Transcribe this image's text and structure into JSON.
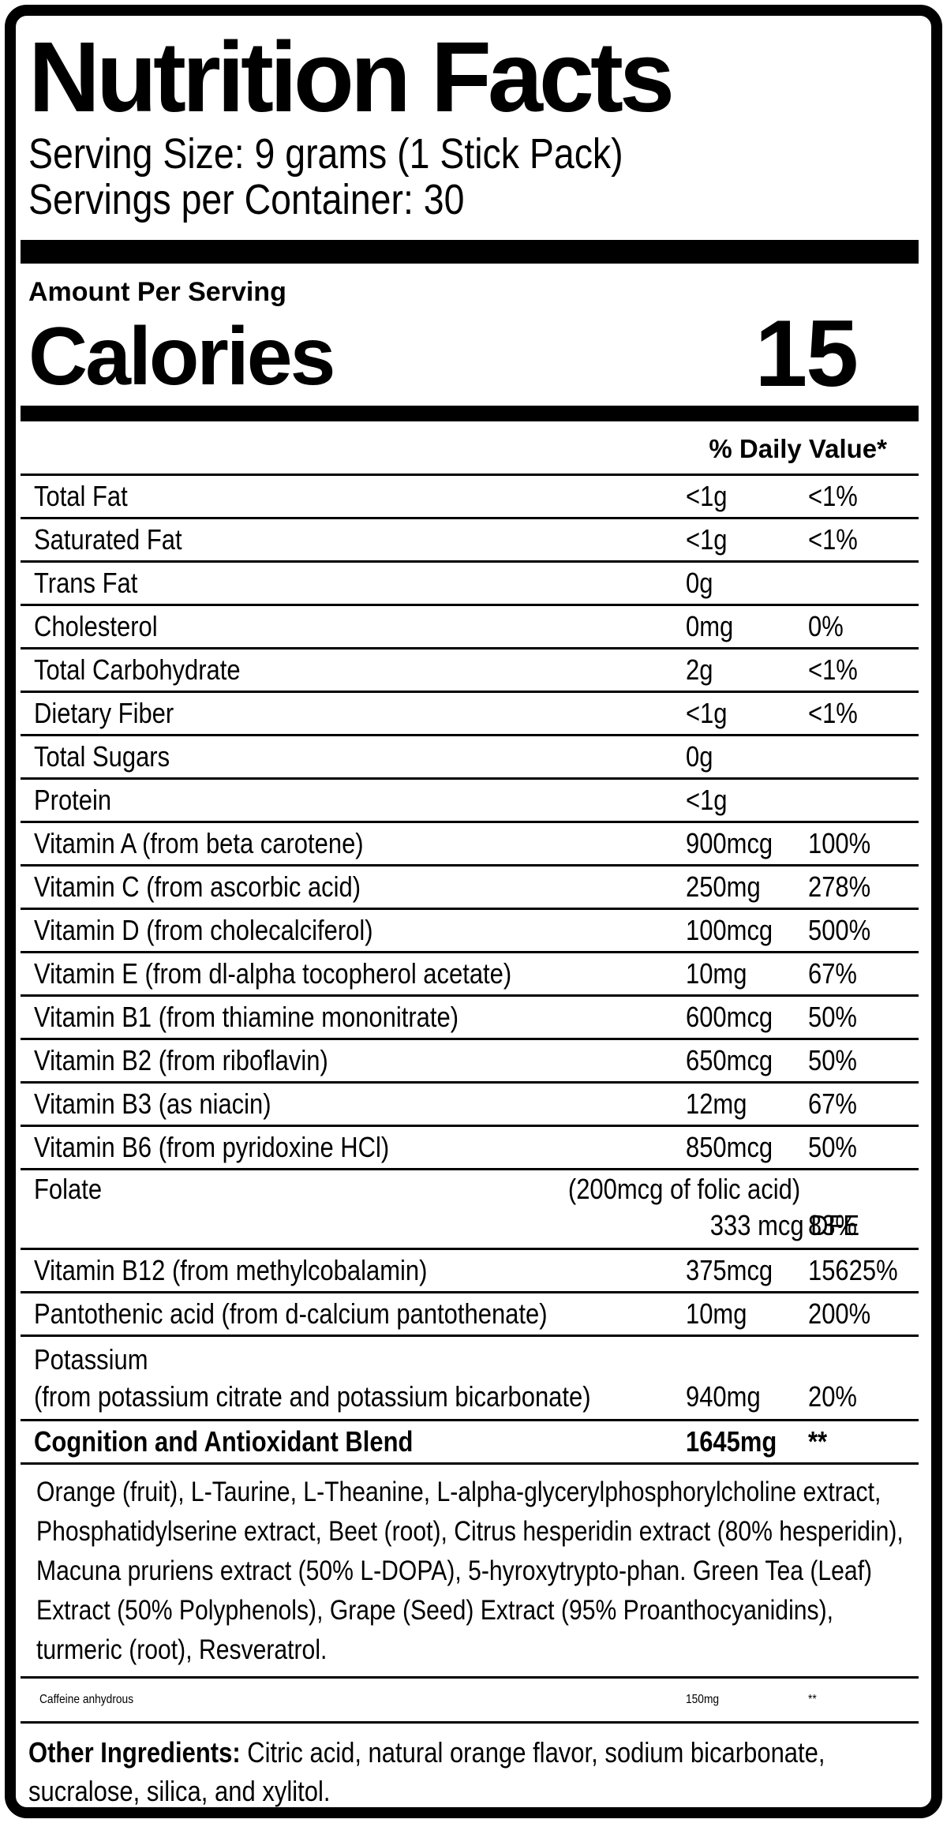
{
  "colors": {
    "ink": "#000000",
    "paper": "#ffffff"
  },
  "header": {
    "title": "Nutrition Facts",
    "serving_size": "Serving Size: 9 grams (1 Stick Pack)",
    "servings_per_container": "Servings per Container: 30"
  },
  "calories": {
    "section_label": "Amount Per Serving",
    "label": "Calories",
    "value": "15"
  },
  "daily_value_header": "% Daily Value*",
  "nutrients": [
    {
      "type": "simple",
      "label": "Total Fat",
      "amount": "<1g",
      "dv": "<1%"
    },
    {
      "type": "simple",
      "label": "Saturated Fat",
      "amount": "<1g",
      "dv": "<1%"
    },
    {
      "type": "simple",
      "label": "Trans Fat",
      "amount": "0g",
      "dv": ""
    },
    {
      "type": "simple",
      "label": "Cholesterol",
      "amount": "0mg",
      "dv": "0%"
    },
    {
      "type": "simple",
      "label": "Total Carbohydrate",
      "amount": "2g",
      "dv": "<1%"
    },
    {
      "type": "simple",
      "label": "Dietary Fiber",
      "amount": "<1g",
      "dv": "<1%"
    },
    {
      "type": "simple",
      "label": "Total Sugars",
      "amount": "0g",
      "dv": ""
    },
    {
      "type": "simple",
      "label": "Protein",
      "amount": "<1g",
      "dv": ""
    },
    {
      "type": "simple",
      "label": "Vitamin A (from beta carotene)",
      "amount": "900mcg",
      "dv": "100%"
    },
    {
      "type": "simple",
      "label": "Vitamin C (from ascorbic acid)",
      "amount": "250mg",
      "dv": "278%"
    },
    {
      "type": "simple",
      "label": "Vitamin D (from cholecalciferol)",
      "amount": "100mcg",
      "dv": "500%"
    },
    {
      "type": "simple",
      "label": "Vitamin E (from dl-alpha tocopherol acetate)",
      "amount": "10mg",
      "dv": "67%"
    },
    {
      "type": "simple",
      "label": "Vitamin B1 (from thiamine mononitrate)",
      "amount": "600mcg",
      "dv": "50%"
    },
    {
      "type": "simple",
      "label": "Vitamin B2 (from riboflavin)",
      "amount": "650mcg",
      "dv": "50%"
    },
    {
      "type": "simple",
      "label": "Vitamin B3 (as niacin)",
      "amount": "12mg",
      "dv": "67%"
    },
    {
      "type": "simple",
      "label": "Vitamin B6 (from pyridoxine HCl)",
      "amount": "850mcg",
      "dv": "50%"
    },
    {
      "type": "folate",
      "label": "Folate",
      "note": "(200mcg of folic acid)",
      "amount": "333 mcg DFE",
      "dv": "83%"
    },
    {
      "type": "simple",
      "label": "Vitamin B12 (from methylcobalamin)",
      "amount": "375mcg",
      "dv": "15625%"
    },
    {
      "type": "simple",
      "label": "Pantothenic acid (from d-calcium pantothenate)",
      "amount": "10mg",
      "dv": "200%"
    },
    {
      "type": "two_line",
      "label": "Potassium",
      "sublabel": "(from potassium citrate and potassium bicarbonate)",
      "amount": "940mg",
      "dv": "20%"
    },
    {
      "type": "simple",
      "bold": true,
      "label": "Cognition and Antioxidant Blend",
      "amount": "1645mg",
      "dv": "**"
    }
  ],
  "blend": {
    "ingredients": "Orange (fruit), L-Taurine, L-Theanine, L-alpha-glycerylphosphorylcholine extract, Phosphatidylserine extract, Beet (root), Citrus hesperidin extract (80% hesperidin), Macuna pruriens extract (50% L-DOPA), 5-hyroxytrypto-phan. Green Tea (Leaf) Extract (50% Polyphenols), Grape (Seed) Extract (95% Proanthocyanidins), turmeric (root), Resveratrol."
  },
  "caffeine": {
    "label": "Caffeine anhydrous",
    "amount": "150mg",
    "dv": "**"
  },
  "other_ingredients": {
    "label": "Other Ingredients:",
    "text": " Citric acid, natural orange flavor, sodium bicarbonate, sucralose, silica, and xylitol."
  }
}
